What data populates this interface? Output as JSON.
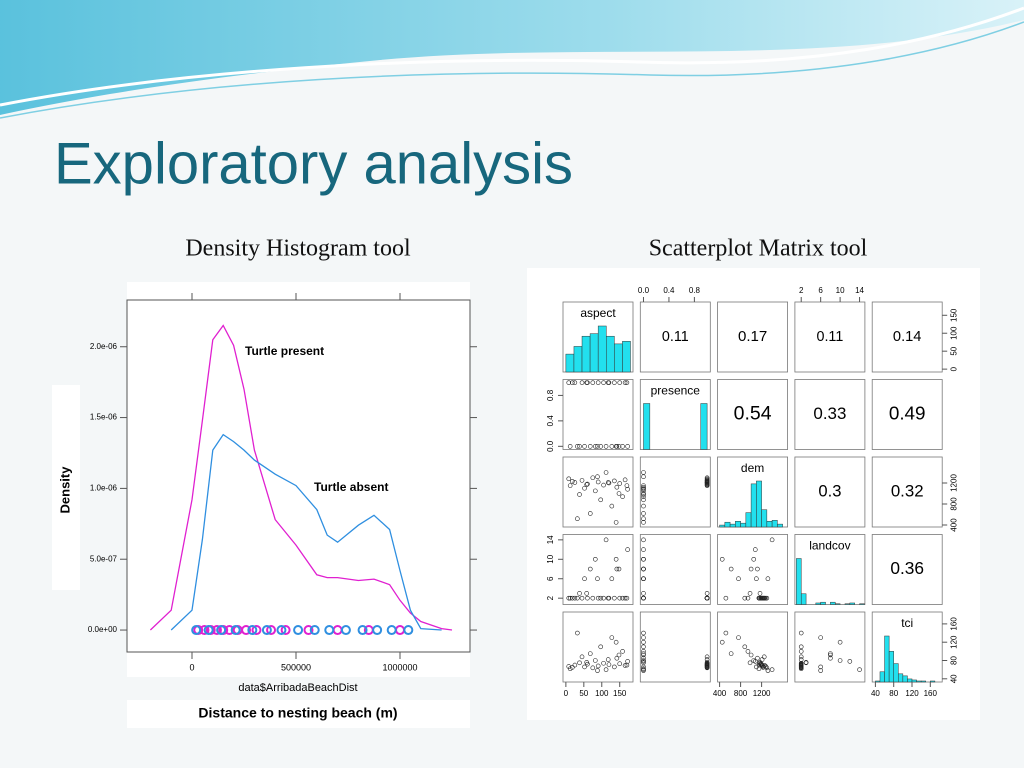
{
  "title": "Exploratory analysis",
  "chart_data": [
    {
      "type": "line",
      "title": "Density Histogram tool",
      "xlabel": "data$ArribadaBeachDist",
      "ylabel": "Density",
      "caption": "Distance to nesting beach (m)",
      "x": [
        -200000,
        -100000,
        0,
        50000,
        100000,
        150000,
        200000,
        250000,
        300000,
        400000,
        500000,
        600000,
        650000,
        700000,
        800000,
        875000,
        950000,
        1000000,
        1050000,
        1100000,
        1200000,
        1250000
      ],
      "series": [
        {
          "name": "Turtle present",
          "color": "#e020d0",
          "values": [
            0,
            1.4e-07,
            9.2e-07,
            1.48e-06,
            2.05e-06,
            2.15e-06,
            2.01e-06,
            1.7e-06,
            1.27e-06,
            7.8e-07,
            6e-07,
            3.9e-07,
            3.7e-07,
            3.7e-07,
            3.5e-07,
            3.6e-07,
            3.2e-07,
            2.1e-07,
            1.2e-07,
            6e-08,
            1e-08,
            0
          ],
          "rug": [
            30000,
            60000,
            90000,
            120000,
            150000,
            180000,
            220000,
            260000,
            310000,
            380000,
            450000,
            560000,
            700000,
            850000,
            1000000
          ]
        },
        {
          "name": "Turtle absent",
          "color": "#2f8fe0",
          "values": [
            null,
            0,
            1.4e-07,
            6.4e-07,
            1.27e-06,
            1.38e-06,
            1.33e-06,
            1.27e-06,
            1.2e-06,
            1.1e-06,
            1.02e-06,
            8.5e-07,
            6.7e-07,
            6.2e-07,
            7.4e-07,
            8.1e-07,
            7.1e-07,
            4.2e-07,
            1.4e-07,
            1e-08,
            0,
            null
          ],
          "rug": [
            20000,
            80000,
            140000,
            210000,
            290000,
            360000,
            430000,
            510000,
            590000,
            660000,
            740000,
            820000,
            890000,
            960000,
            1040000
          ]
        }
      ],
      "xlim": [
        -312500,
        1336500
      ],
      "ylim": [
        -1.55e-07,
        2.33e-06
      ],
      "xticks": [
        0,
        500000,
        1000000
      ],
      "yticks": [
        {
          "value": 0,
          "label": "0.0e+00"
        },
        {
          "value": 5e-07,
          "label": "5.0e-07"
        },
        {
          "value": 1e-06,
          "label": "1.0e-06"
        },
        {
          "value": 1.5e-06,
          "label": "1.5e-06"
        },
        {
          "value": 2e-06,
          "label": "2.0e-06"
        }
      ]
    },
    {
      "type": "scatter_matrix",
      "title": "Scatterplot Matrix tool",
      "variables": [
        {
          "name": "aspect",
          "lim": [
            -8,
            187
          ],
          "ticks": [
            0,
            50,
            100,
            150
          ],
          "bins": [
            0,
            22.5,
            45,
            67.5,
            90,
            112.5,
            135,
            157.5,
            180
          ],
          "counts": [
            7,
            10,
            14,
            15,
            18,
            14,
            11,
            12
          ]
        },
        {
          "name": "presence",
          "lim": [
            -0.05,
            1.05
          ],
          "ticks": [
            {
              "value": 0,
              "label": "0.0"
            },
            {
              "value": 0.4,
              "label": "0.4"
            },
            {
              "value": 0.8,
              "label": "0.8"
            }
          ],
          "bins": [
            0,
            0.1,
            0.2,
            0.3,
            0.4,
            0.5,
            0.6,
            0.7,
            0.8,
            0.9,
            1.0
          ],
          "counts": [
            60,
            0,
            0,
            0,
            0,
            0,
            0,
            0,
            0,
            60
          ]
        },
        {
          "name": "dem",
          "lim": [
            362,
            1695
          ],
          "ticks": [
            400,
            800,
            1200
          ],
          "bins": [
            400,
            500,
            600,
            700,
            800,
            900,
            1000,
            1100,
            1200,
            1300,
            1400,
            1500,
            1600
          ],
          "counts": [
            2,
            5,
            3,
            6,
            4,
            15,
            45,
            48,
            18,
            6,
            7,
            3
          ]
        },
        {
          "name": "landcov",
          "lim": [
            0.7,
            15.1
          ],
          "ticks": [
            2,
            6,
            10,
            14
          ],
          "bins": [
            1,
            2,
            3,
            4,
            5,
            6,
            7,
            8,
            9,
            10,
            11,
            12,
            13,
            14,
            15
          ],
          "counts": [
            60,
            14,
            0,
            0,
            2,
            3,
            0,
            3,
            1,
            0,
            1,
            2,
            0,
            1
          ]
        },
        {
          "name": "tci",
          "lim": [
            33,
            186
          ],
          "ticks": [
            40,
            80,
            120,
            160
          ],
          "bins": [
            40,
            50,
            60,
            70,
            80,
            90,
            100,
            110,
            120,
            130,
            140,
            150,
            160,
            170
          ],
          "counts": [
            1,
            10,
            45,
            30,
            18,
            8,
            6,
            3,
            2,
            1,
            1,
            0,
            1
          ]
        }
      ],
      "correlations": [
        0.11,
        0.17,
        0.11,
        0.14,
        0.54,
        0.33,
        0.49,
        0.3,
        0.32,
        0.36
      ],
      "observations": [
        [
          12,
          0,
          1150,
          2,
          62
        ],
        [
          25,
          1,
          1210,
          2,
          70
        ],
        [
          38,
          0,
          980,
          3,
          75
        ],
        [
          45,
          1,
          1250,
          2,
          88
        ],
        [
          52,
          0,
          1100,
          6,
          66
        ],
        [
          60,
          1,
          1180,
          2,
          72
        ],
        [
          68,
          0,
          620,
          8,
          95
        ],
        [
          75,
          1,
          1300,
          2,
          64
        ],
        [
          82,
          0,
          1050,
          10,
          80
        ],
        [
          90,
          1,
          1220,
          2,
          68
        ],
        [
          97,
          0,
          880,
          2,
          110
        ],
        [
          105,
          1,
          1160,
          2,
          74
        ],
        [
          112,
          0,
          1400,
          14,
          60
        ],
        [
          120,
          1,
          1200,
          2,
          71
        ],
        [
          128,
          0,
          760,
          6,
          130
        ],
        [
          135,
          1,
          1240,
          2,
          66
        ],
        [
          142,
          0,
          1120,
          8,
          85
        ],
        [
          150,
          1,
          1190,
          2,
          73
        ],
        [
          158,
          0,
          940,
          2,
          100
        ],
        [
          165,
          1,
          1260,
          2,
          69
        ],
        [
          172,
          0,
          1080,
          12,
          78
        ],
        [
          18,
          1,
          1230,
          2,
          65
        ],
        [
          32,
          0,
          520,
          2,
          140
        ],
        [
          58,
          1,
          1170,
          3,
          76
        ],
        [
          88,
          0,
          1320,
          6,
          58
        ],
        [
          118,
          1,
          1210,
          2,
          82
        ],
        [
          148,
          0,
          1000,
          8,
          92
        ],
        [
          8,
          1,
          1280,
          2,
          67
        ],
        [
          140,
          0,
          450,
          10,
          120
        ],
        [
          170,
          1,
          1150,
          2,
          70
        ]
      ]
    }
  ]
}
